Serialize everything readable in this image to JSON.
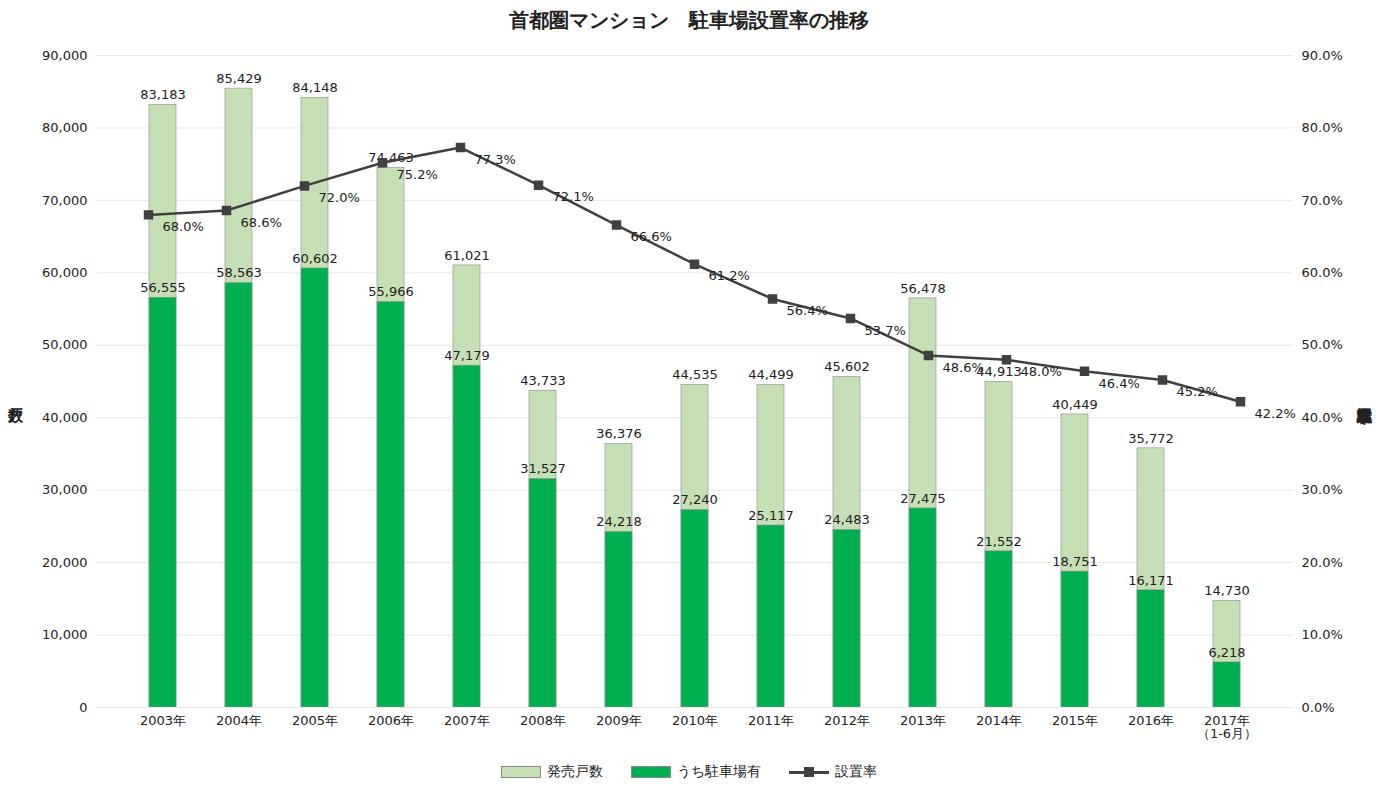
{
  "chart_data": {
    "type": "bar",
    "title": "首都圏マンション　駐車場設置率の推移",
    "y_label": "戸数",
    "y2_label": "駐車場設置率",
    "categories": [
      "2003年",
      "2004年",
      "2005年",
      "2006年",
      "2007年",
      "2008年",
      "2009年",
      "2010年",
      "2011年",
      "2012年",
      "2013年",
      "2014年",
      "2015年",
      "2016年",
      "2017年\n（1-6月）"
    ],
    "series": [
      {
        "name": "発売戸数",
        "type": "bar",
        "color": "#c5e0b4",
        "values": [
          83183,
          85429,
          84148,
          74463,
          61021,
          43733,
          36376,
          44535,
          44499,
          45602,
          56478,
          44913,
          40449,
          35772,
          14730
        ],
        "value_labels": [
          "83,183",
          "85,429",
          "84,148",
          "74,463",
          "61,021",
          "43,733",
          "36,376",
          "44,535",
          "44,499",
          "45,602",
          "56,478",
          "44,913",
          "40,449",
          "35,772",
          "14,730"
        ]
      },
      {
        "name": "うち駐車場有",
        "type": "bar",
        "color": "#00b050",
        "values": [
          56555,
          58563,
          60602,
          55966,
          47179,
          31527,
          24218,
          27240,
          25117,
          24483,
          27475,
          21552,
          18751,
          16171,
          6218
        ],
        "value_labels": [
          "56,555",
          "58,563",
          "60,602",
          "55,966",
          "47,179",
          "31,527",
          "24,218",
          "27,240",
          "25,117",
          "24,483",
          "27,475",
          "21,552",
          "18,751",
          "16,171",
          "6,218"
        ]
      },
      {
        "name": "設置率",
        "type": "line",
        "color": "#404040",
        "marker": "square",
        "line_style": "solid",
        "axis": "y2",
        "values": [
          68.0,
          68.6,
          72.0,
          75.2,
          77.3,
          72.1,
          66.6,
          61.2,
          56.4,
          53.7,
          48.6,
          48.0,
          46.4,
          45.2,
          42.2
        ],
        "value_labels": [
          "68.0%",
          "68.6%",
          "72.0%",
          "75.2%",
          "77.3%",
          "72.1%",
          "66.6%",
          "61.2%",
          "56.4%",
          "53.7%",
          "48.6%",
          "48.0%",
          "46.4%",
          "45.2%",
          "42.2%"
        ]
      }
    ],
    "ylim": [
      0,
      90000
    ],
    "yticks": [
      0,
      {
        "value": 10000,
        "label": "10,000"
      },
      {
        "value": 20000,
        "label": "20,000"
      },
      {
        "value": 30000,
        "label": "30,000"
      },
      {
        "value": 40000,
        "label": "40,000"
      },
      {
        "value": 50000,
        "label": "50,000"
      },
      {
        "value": 60000,
        "label": "60,000"
      },
      {
        "value": 70000,
        "label": "70,000"
      },
      {
        "value": 80000,
        "label": "80,000"
      },
      {
        "value": 90000,
        "label": "90,000"
      }
    ],
    "y2lim": [
      0,
      90
    ],
    "y2ticks": [
      {
        "value": 0,
        "label": "0.0%"
      },
      {
        "value": 10,
        "label": "10.0%"
      },
      {
        "value": 20,
        "label": "20.0%"
      },
      {
        "value": 30,
        "label": "30.0%"
      },
      {
        "value": 40,
        "label": "40.0%"
      },
      {
        "value": 50,
        "label": "50.0%"
      },
      {
        "value": 60,
        "label": "60.0%"
      },
      {
        "value": 70,
        "label": "70.0%"
      },
      {
        "value": 80,
        "label": "80.0%"
      },
      {
        "value": 90,
        "label": "90.0%"
      }
    ],
    "grid": true,
    "stacked": false,
    "data_labels": true,
    "legend": "bottom"
  }
}
